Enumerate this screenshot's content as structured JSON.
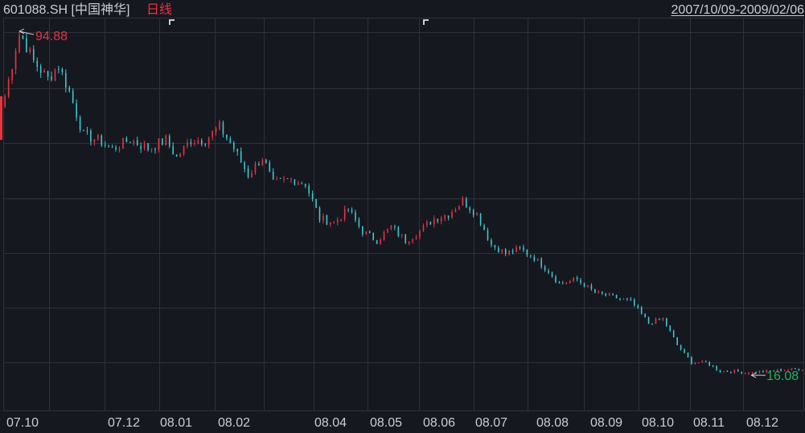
{
  "header": {
    "symbol": "601088.SH [中国神华]",
    "period": "日线",
    "date_range": "2007/10/09-2009/02/06"
  },
  "colors": {
    "background": "#161820",
    "grid": "#2d313a",
    "up": "#e8343f",
    "down": "#3fc6cf",
    "text": "#c9ccd2",
    "high_label": "#e8343f",
    "low_label": "#27b157"
  },
  "chart_data": {
    "type": "candlestick",
    "title": "",
    "xlabel": "",
    "ylabel": "",
    "ylim": [
      8,
      98
    ],
    "grid": true,
    "month_labels": [
      "07.10",
      "07.12",
      "08.01",
      "08.02",
      "08.04",
      "08.05",
      "08.06",
      "08.07",
      "08.08",
      "08.09",
      "08.10",
      "08.11",
      "08.12"
    ],
    "annotations": [
      {
        "label": "94.88",
        "value": 94.88,
        "kind": "high"
      },
      {
        "label": "16.08",
        "value": 16.08,
        "kind": "low"
      }
    ],
    "price_path": [
      [
        0,
        80
      ],
      [
        4,
        94.88
      ],
      [
        8,
        88
      ],
      [
        12,
        84
      ],
      [
        15,
        87
      ],
      [
        18,
        81
      ],
      [
        22,
        71
      ],
      [
        26,
        70
      ],
      [
        30,
        68
      ],
      [
        35,
        70
      ],
      [
        40,
        68
      ],
      [
        45,
        70
      ],
      [
        48,
        66
      ],
      [
        52,
        70
      ],
      [
        56,
        70
      ],
      [
        60,
        73
      ],
      [
        64,
        68
      ],
      [
        68,
        62
      ],
      [
        72,
        66
      ],
      [
        75,
        60
      ],
      [
        80,
        61
      ],
      [
        84,
        60
      ],
      [
        88,
        52
      ],
      [
        92,
        51
      ],
      [
        96,
        54
      ],
      [
        100,
        49
      ],
      [
        104,
        47
      ],
      [
        108,
        50
      ],
      [
        112,
        47
      ],
      [
        116,
        49
      ],
      [
        120,
        52
      ],
      [
        124,
        53
      ],
      [
        128,
        56
      ],
      [
        132,
        53
      ],
      [
        136,
        46
      ],
      [
        140,
        44
      ],
      [
        144,
        45
      ],
      [
        148,
        43
      ],
      [
        152,
        40
      ],
      [
        155,
        37
      ],
      [
        160,
        38
      ],
      [
        165,
        35
      ],
      [
        170,
        34
      ],
      [
        175,
        33
      ],
      [
        180,
        28
      ],
      [
        184,
        29
      ],
      [
        188,
        23
      ],
      [
        192,
        19
      ],
      [
        196,
        19
      ],
      [
        200,
        17
      ],
      [
        204,
        17
      ],
      [
        208,
        16.6
      ],
      [
        212,
        16.9
      ],
      [
        216,
        17.2
      ],
      [
        220,
        17.4
      ],
      [
        223,
        17.5
      ]
    ],
    "high_index": 4,
    "low_index": 208,
    "candle_count": 224
  }
}
